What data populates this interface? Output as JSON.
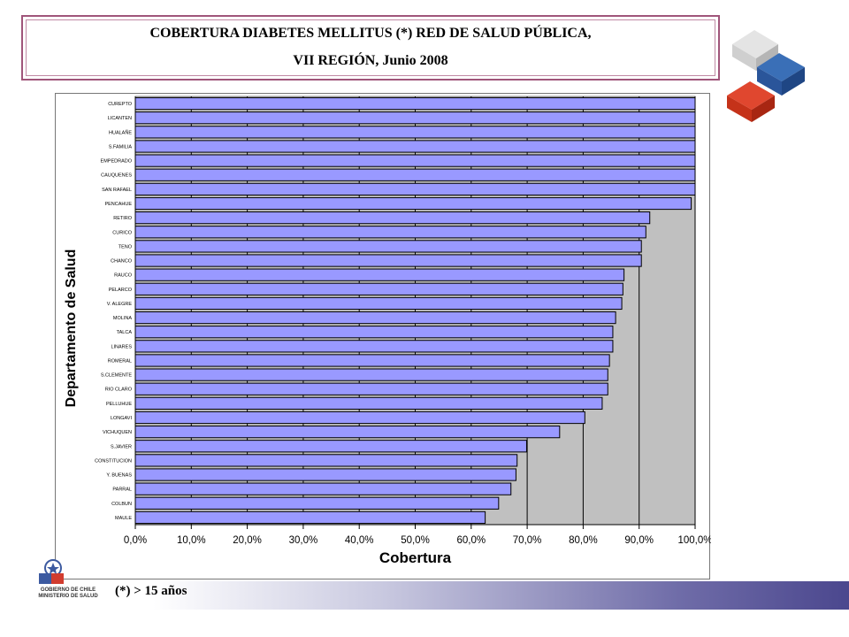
{
  "title": {
    "line1": "COBERTURA DIABETES MELLITUS (*) RED DE SALUD PÚBLICA,",
    "line2": "VII REGIÓN, Junio 2008"
  },
  "footnote": "(*) > 15 años",
  "logo": {
    "line1": "GOBIERNO DE CHILE",
    "line2": "MINISTERIO DE SALUD"
  },
  "colors": {
    "bar": "#9999ff",
    "plot_background": "#c0c0c0",
    "frame": "#a0557a"
  },
  "chart_data": {
    "type": "bar",
    "orientation": "horizontal",
    "xlabel": "Cobertura",
    "ylabel": "Departamento de Salud",
    "xlim": [
      0,
      100
    ],
    "x_ticks": [
      "0,0%",
      "10,0%",
      "20,0%",
      "30,0%",
      "40,0%",
      "50,0%",
      "60,0%",
      "70,0%",
      "80,0%",
      "90,0%",
      "100,0%"
    ],
    "grid": "vertical",
    "categories": [
      "CUREPTO",
      "LICANTEN",
      "HUALAÑE",
      "S.FAMILIA",
      "EMPEDRADO",
      "CAUQUENES",
      "SAN RAFAEL",
      "PENCAHUE",
      "RETIRO",
      "CURICO",
      "TENO",
      "CHANCO",
      "RAUCO",
      "PELARCO",
      "V. ALEGRE",
      "MOLINA",
      "TALCA",
      "LINARES",
      "ROMERAL",
      "S.CLEMENTE",
      "RIO CLARO",
      "PELLUHUE",
      "LONGAVI",
      "VICHUQUEN",
      "S.JAVIER",
      "CONSTITUCION",
      "Y. BUENAS",
      "PARRAL",
      "COLBUN",
      "MAULE"
    ],
    "values": [
      100,
      100,
      100,
      100,
      100,
      100,
      100,
      99.3,
      91.9,
      91.2,
      90.4,
      90.4,
      87.3,
      87.1,
      86.9,
      85.8,
      85.3,
      85.3,
      84.7,
      84.4,
      84.4,
      83.4,
      80.3,
      75.8,
      69.9,
      68.2,
      68.0,
      67.1,
      64.9,
      62.5
    ]
  }
}
